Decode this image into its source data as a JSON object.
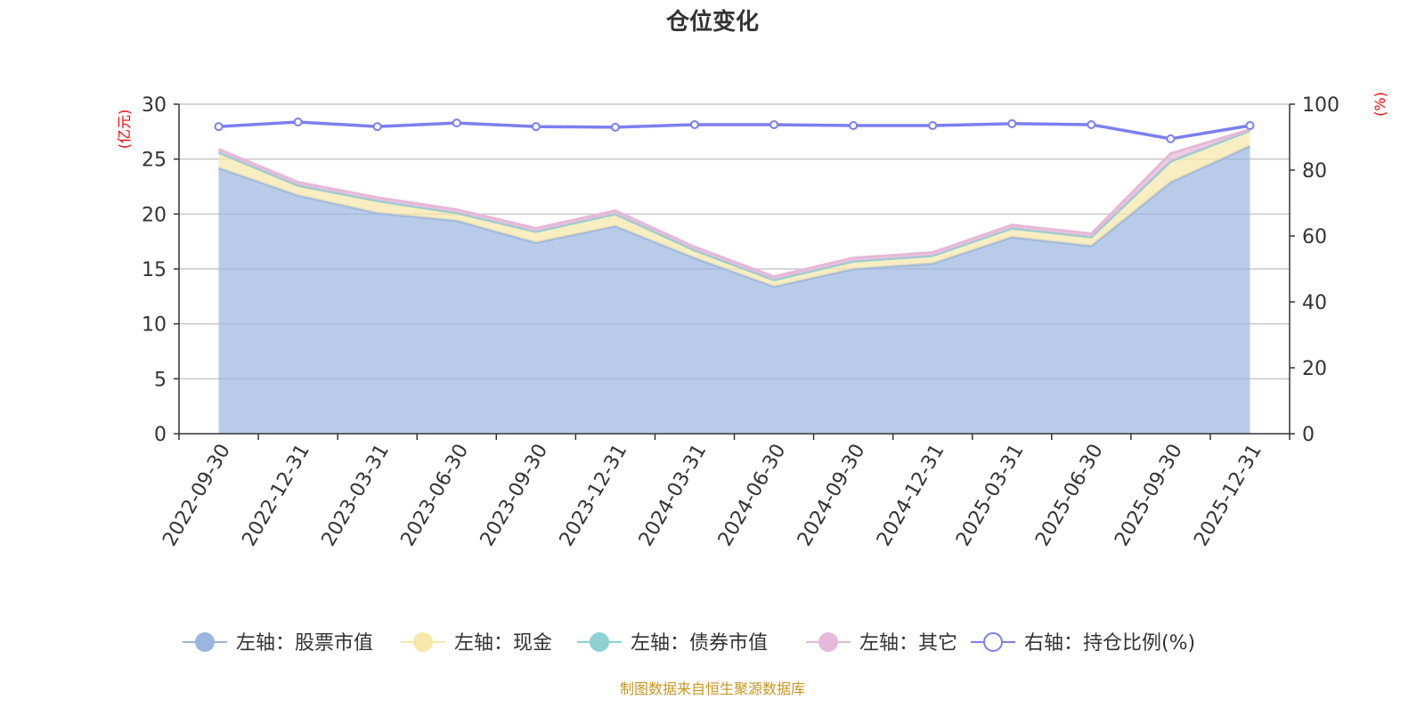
{
  "chart_data": {
    "type": "area",
    "title": "仓位变化",
    "categories": [
      "2022-09-30",
      "2022-12-31",
      "2023-03-31",
      "2023-06-30",
      "2023-09-30",
      "2023-12-31",
      "2024-03-31",
      "2024-06-30",
      "2024-09-30",
      "2024-12-31",
      "2025-03-31",
      "2025-06-30",
      "2025-09-30",
      "2025-12-31"
    ],
    "left_axis": {
      "label": "(亿元)",
      "range": [
        0,
        30
      ],
      "ticks": [
        0,
        5,
        10,
        15,
        20,
        25,
        30
      ]
    },
    "right_axis": {
      "label": "(%)",
      "range": [
        0,
        100
      ],
      "ticks": [
        0,
        20,
        40,
        60,
        80,
        100
      ]
    },
    "stacked": true,
    "grid": true,
    "legend_position": "bottom",
    "series": [
      {
        "name": "左轴：股票市值",
        "axis": "left",
        "type": "area",
        "color": "#9ab5e0",
        "values": [
          24.2,
          21.7,
          20.1,
          19.4,
          17.4,
          18.9,
          16.0,
          13.4,
          15.0,
          15.5,
          17.9,
          17.1,
          22.9,
          26.2
        ]
      },
      {
        "name": "左轴：现金",
        "axis": "left",
        "type": "area",
        "color": "#f7e7a8",
        "values": [
          1.4,
          0.9,
          1.1,
          0.7,
          1.0,
          1.1,
          0.7,
          0.6,
          0.7,
          0.7,
          0.8,
          0.8,
          1.9,
          1.4
        ]
      },
      {
        "name": "左轴：债券市值",
        "axis": "left",
        "type": "area",
        "color": "#8fd0d2",
        "values": [
          0,
          0,
          0,
          0,
          0,
          0,
          0,
          0,
          0,
          0,
          0,
          0,
          0,
          0
        ]
      },
      {
        "name": "左轴：其它",
        "axis": "left",
        "type": "area",
        "color": "#e6b8d9",
        "values": [
          0.3,
          0.3,
          0.3,
          0.3,
          0.3,
          0.3,
          0.3,
          0.3,
          0.3,
          0.3,
          0.3,
          0.3,
          0.7,
          0.1
        ]
      },
      {
        "name": "右轴：持仓比例(%)",
        "axis": "right",
        "type": "line",
        "color": "#7b7ff0",
        "values": [
          93.2,
          94.6,
          93.2,
          94.3,
          93.2,
          93.0,
          93.8,
          93.8,
          93.5,
          93.5,
          94.1,
          93.8,
          89.5,
          93.5
        ]
      }
    ],
    "footer": "制图数据来自恒生聚源数据库",
    "colors": {
      "axis_label": "#ff0000",
      "footer": "#c8961e",
      "grid": "#c8c8c8"
    }
  }
}
